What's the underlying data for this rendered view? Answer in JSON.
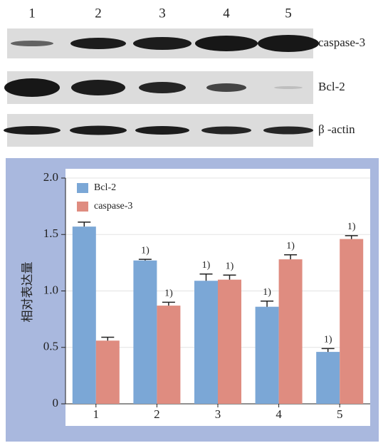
{
  "blot": {
    "lanes": [
      "1",
      "2",
      "3",
      "4",
      "5"
    ],
    "rows": [
      "caspase-3",
      "Bcl-2",
      "β -actin"
    ]
  },
  "chart_data": {
    "type": "bar",
    "y_label": "相对表达量",
    "categories": [
      "1",
      "2",
      "3",
      "4",
      "5"
    ],
    "series": [
      {
        "name": "Bcl-2",
        "color": "#7ba7d6",
        "values": [
          1.57,
          1.27,
          1.09,
          0.86,
          0.46
        ],
        "errors": [
          0.04,
          0.01,
          0.06,
          0.05,
          0.03
        ],
        "markers": [
          null,
          "1)",
          "1)",
          "1)",
          "1)"
        ]
      },
      {
        "name": "caspase-3",
        "color": "#df8c80",
        "values": [
          0.56,
          0.87,
          1.1,
          1.28,
          1.46
        ],
        "errors": [
          0.03,
          0.03,
          0.04,
          0.04,
          0.03
        ],
        "markers": [
          null,
          "1)",
          "1)",
          "1)",
          "1)"
        ]
      }
    ],
    "ylim": [
      0,
      2
    ],
    "yticks": [
      0,
      0.5,
      {
        "value": 1,
        "label": "1.0"
      },
      1.5,
      {
        "value": 2,
        "label": "2.0"
      }
    ],
    "grid": true,
    "legend": "top-left"
  }
}
